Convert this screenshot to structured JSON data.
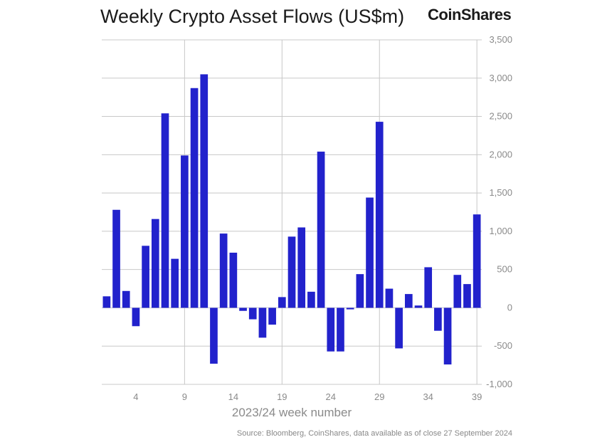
{
  "header": {
    "title": "Weekly Crypto Asset Flows (US$m)",
    "brand": "CoinShares"
  },
  "footer": {
    "source": "Source: Bloomberg, CoinShares, data available as of close 27 September 2024"
  },
  "colors": {
    "bar": "#2222cc",
    "grid": "#c8c8c8",
    "axis_text": "#8a8a8a"
  },
  "chart_data": {
    "type": "bar",
    "title": "Weekly Crypto Asset Flows (US$m)",
    "xlabel": "2023/24 week number",
    "ylabel": "",
    "ylim": [
      -1000,
      3500
    ],
    "y_ticks": [
      3500,
      3000,
      2500,
      2000,
      1500,
      1000,
      500,
      0,
      -500,
      -1000
    ],
    "y_tick_labels": [
      "3,500",
      "3,000",
      "2,500",
      "2,000",
      "1,500",
      "1,000",
      "500",
      "0",
      "-500",
      "-1,000"
    ],
    "x_tick_weeks": [
      4,
      9,
      14,
      19,
      24,
      29,
      34,
      39
    ],
    "x_tick_labels": [
      "4",
      "9",
      "14",
      "19",
      "24",
      "29",
      "34",
      "39"
    ],
    "vertical_gridline_weeks": [
      9,
      19,
      29,
      39
    ],
    "y_axis_position": "right",
    "weeks": [
      1,
      2,
      3,
      4,
      5,
      6,
      7,
      8,
      9,
      10,
      11,
      12,
      13,
      14,
      15,
      16,
      17,
      18,
      19,
      20,
      21,
      22,
      23,
      24,
      25,
      26,
      27,
      28,
      29,
      30,
      31,
      32,
      33,
      34,
      35,
      36,
      37,
      38,
      39
    ],
    "values": [
      150,
      1280,
      220,
      -240,
      810,
      1160,
      2540,
      640,
      1990,
      2870,
      3050,
      -730,
      970,
      720,
      -40,
      -150,
      -390,
      -220,
      140,
      930,
      1050,
      210,
      2040,
      -570,
      -570,
      -20,
      440,
      1440,
      2430,
      250,
      -530,
      180,
      30,
      530,
      -300,
      -740,
      430,
      310,
      1220
    ]
  }
}
